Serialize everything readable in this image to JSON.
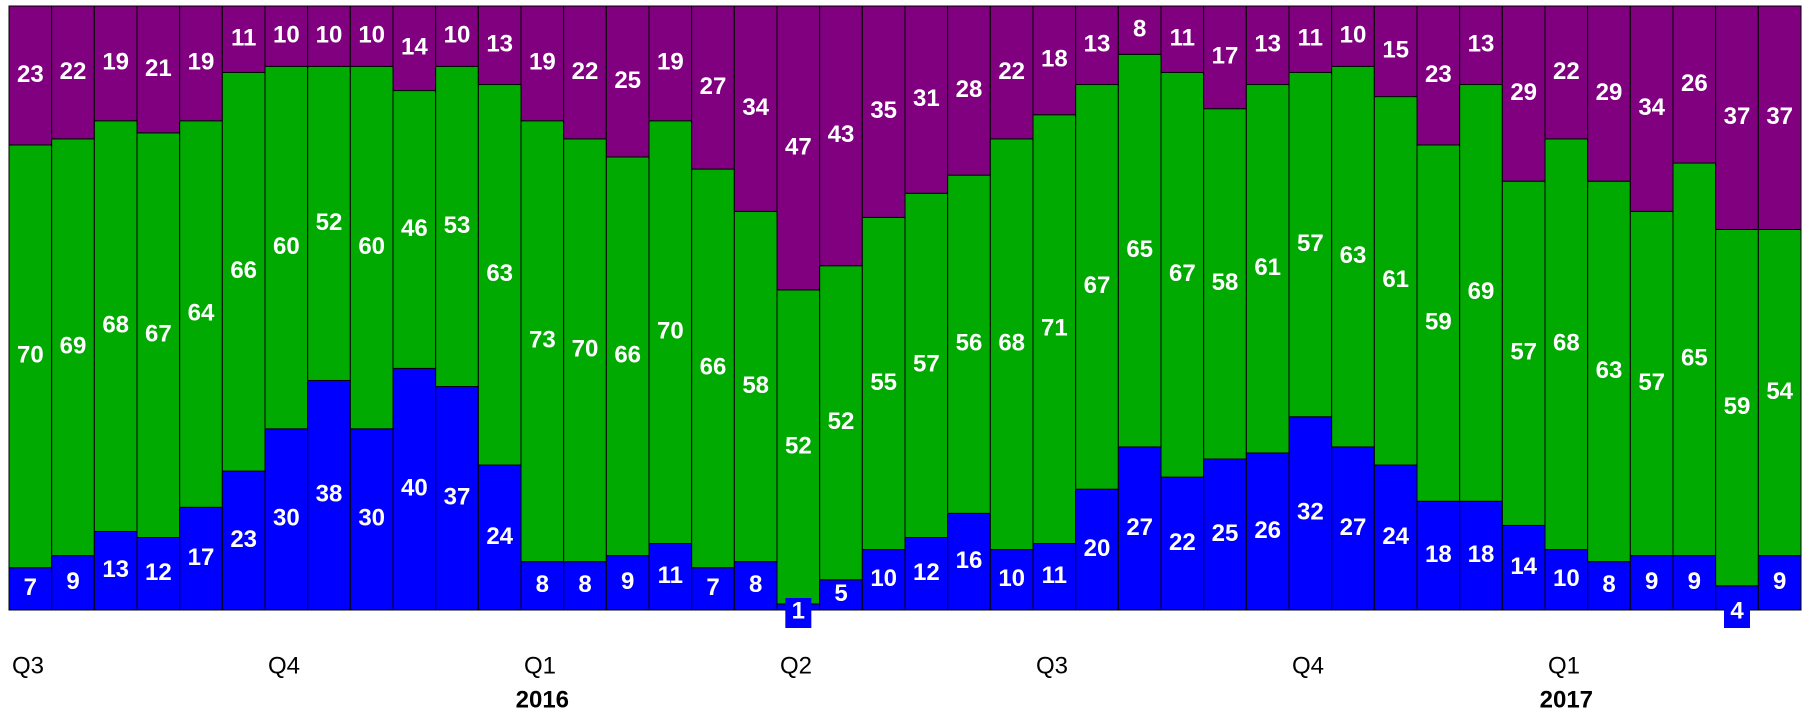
{
  "chart_data": {
    "type": "stacked_bar",
    "categories": [
      "Q3",
      null,
      null,
      null,
      null,
      null,
      "Q4",
      null,
      null,
      null,
      null,
      null,
      "Q1",
      null,
      null,
      null,
      null,
      null,
      "Q2",
      null,
      null,
      null,
      null,
      null,
      "Q3",
      null,
      null,
      null,
      null,
      null,
      "Q4",
      null,
      null,
      null,
      null,
      null,
      "Q1",
      null,
      null,
      null,
      null,
      null
    ],
    "years": [
      null,
      null,
      null,
      null,
      null,
      null,
      null,
      null,
      null,
      null,
      null,
      null,
      "2016",
      null,
      null,
      null,
      null,
      null,
      null,
      null,
      null,
      null,
      null,
      null,
      null,
      null,
      null,
      null,
      null,
      null,
      null,
      null,
      null,
      null,
      null,
      null,
      "2017",
      null,
      null,
      null,
      null,
      null
    ],
    "ylim": [
      0,
      100
    ],
    "series": [
      {
        "color": "#0000ff",
        "values": [
          7,
          9,
          13,
          12,
          17,
          23,
          30,
          38,
          30,
          40,
          37,
          24,
          8,
          8,
          9,
          11,
          7,
          8,
          1,
          5,
          10,
          12,
          16,
          10,
          11,
          20,
          27,
          22,
          25,
          26,
          32,
          27,
          24,
          18,
          18,
          14,
          10,
          8,
          9,
          9,
          4,
          9
        ]
      },
      {
        "color": "#00aa00",
        "values": [
          70,
          69,
          68,
          67,
          64,
          66,
          60,
          52,
          60,
          46,
          53,
          63,
          73,
          70,
          66,
          70,
          66,
          58,
          52,
          52,
          55,
          57,
          56,
          68,
          71,
          67,
          65,
          67,
          58,
          61,
          57,
          63,
          61,
          59,
          69,
          57,
          68,
          63,
          57,
          65,
          59,
          54
        ]
      },
      {
        "color": "#800080",
        "values": [
          23,
          22,
          19,
          21,
          19,
          11,
          10,
          10,
          10,
          14,
          10,
          13,
          19,
          22,
          25,
          19,
          27,
          34,
          47,
          43,
          35,
          31,
          28,
          22,
          18,
          13,
          8,
          11,
          17,
          13,
          11,
          10,
          15,
          23,
          13,
          29,
          22,
          29,
          34,
          26,
          37,
          37
        ]
      }
    ]
  }
}
